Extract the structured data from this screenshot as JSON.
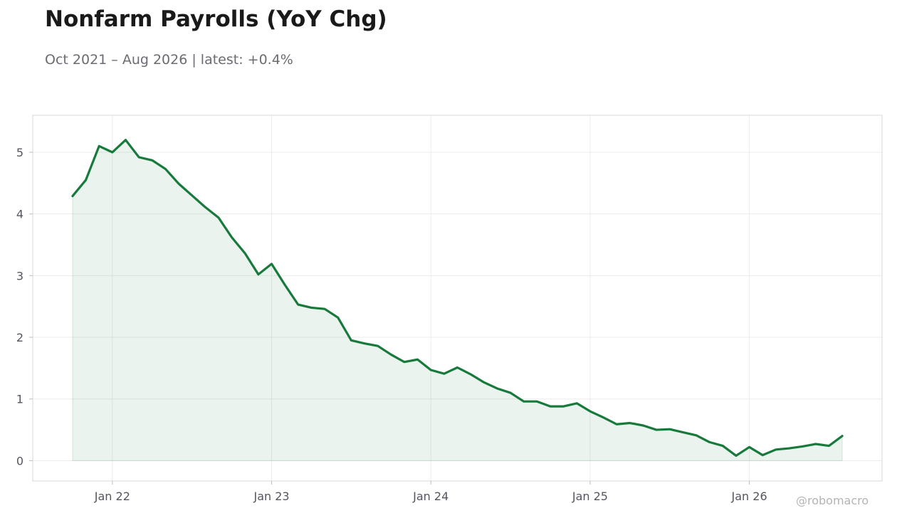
{
  "title": "Nonfarm Payrolls (YoY Chg)",
  "subtitle": "Oct 2021 – Aug 2026 | latest: +0.4%",
  "watermark": "@robomacro",
  "chart_data": {
    "type": "area",
    "title": "Nonfarm Payrolls (YoY Chg)",
    "subtitle": "Oct 2021 – Aug 2026 | latest: +0.4%",
    "xlabel": "",
    "ylabel": "",
    "x_start": "2021-10",
    "x_end": "2026-08",
    "xlim": [
      "2021-07",
      "2026-11"
    ],
    "ylim": [
      -0.33,
      5.6
    ],
    "x_ticks": [
      {
        "date": "2022-01",
        "label": "Jan 22"
      },
      {
        "date": "2023-01",
        "label": "Jan 23"
      },
      {
        "date": "2024-01",
        "label": "Jan 24"
      },
      {
        "date": "2025-01",
        "label": "Jan 25"
      },
      {
        "date": "2026-01",
        "label": "Jan 26"
      }
    ],
    "y_ticks": [
      0,
      1,
      2,
      3,
      4,
      5
    ],
    "grid": true,
    "series": [
      {
        "values": [
          4.29,
          4.55,
          5.1,
          5.0,
          5.2,
          4.92,
          4.87,
          4.73,
          4.49,
          4.3,
          4.11,
          3.94,
          3.62,
          3.36,
          3.02,
          3.19,
          2.85,
          2.53,
          2.48,
          2.46,
          2.32,
          1.95,
          1.9,
          1.86,
          1.72,
          1.6,
          1.64,
          1.47,
          1.41,
          1.51,
          1.4,
          1.27,
          1.17,
          1.1,
          0.96,
          0.96,
          0.88,
          0.88,
          0.93,
          0.8,
          0.7,
          0.59,
          0.61,
          0.57,
          0.5,
          0.51,
          0.46,
          0.41,
          0.3,
          0.24,
          0.08,
          0.22,
          0.09,
          0.18,
          0.2,
          0.23,
          0.27,
          0.24,
          0.4
        ]
      }
    ]
  },
  "colors": {
    "line": "#177a3b",
    "fill": "#177a3b",
    "grid": "#ececec",
    "frame": "#d9d9d9",
    "tick_text": "#555560",
    "title_text": "#1a1a1a",
    "subtitle_text": "#6b6b73",
    "watermark_text": "#b4b4b4"
  }
}
